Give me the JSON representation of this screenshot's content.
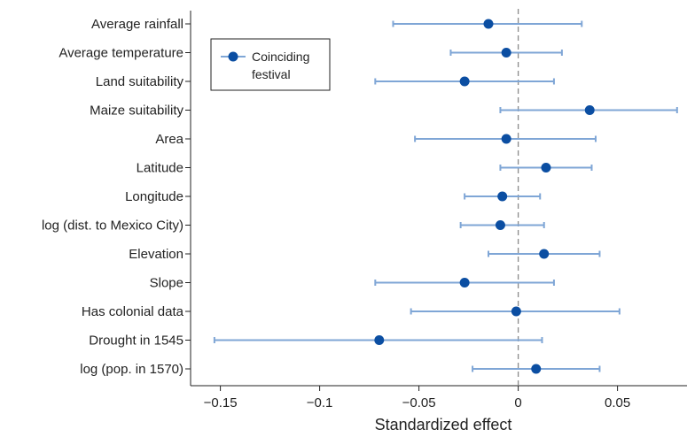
{
  "chart_data": {
    "type": "scatter",
    "subtype": "forest-plot",
    "xlabel": "Standardized effect",
    "xlim": [
      -0.165,
      0.085
    ],
    "xticks": [
      -0.15,
      -0.1,
      -0.05,
      0,
      0.05
    ],
    "xtick_labels": [
      "−0.15",
      "−0.1",
      "−0.05",
      "0",
      "0.05"
    ],
    "reference_line": 0,
    "grid": false,
    "legend": {
      "placement": "top-left",
      "entries": [
        "Coinciding",
        "festival"
      ]
    },
    "colors": {
      "point": "#0b4ea2",
      "ci": "#7fa6d6",
      "reference": "#8a8a8a"
    },
    "series": [
      {
        "name": "Coinciding festival",
        "points": [
          {
            "label": "Average rainfall",
            "estimate": -0.015,
            "ci_low": -0.063,
            "ci_high": 0.032
          },
          {
            "label": "Average temperature",
            "estimate": -0.006,
            "ci_low": -0.034,
            "ci_high": 0.022
          },
          {
            "label": "Land suitability",
            "estimate": -0.027,
            "ci_low": -0.072,
            "ci_high": 0.018
          },
          {
            "label": "Maize suitability",
            "estimate": 0.036,
            "ci_low": -0.009,
            "ci_high": 0.08
          },
          {
            "label": "Area",
            "estimate": -0.006,
            "ci_low": -0.052,
            "ci_high": 0.039
          },
          {
            "label": "Latitude",
            "estimate": 0.014,
            "ci_low": -0.009,
            "ci_high": 0.037
          },
          {
            "label": "Longitude",
            "estimate": -0.008,
            "ci_low": -0.027,
            "ci_high": 0.011
          },
          {
            "label": "log (dist. to Mexico City)",
            "estimate": -0.009,
            "ci_low": -0.029,
            "ci_high": 0.013
          },
          {
            "label": "Elevation",
            "estimate": 0.013,
            "ci_low": -0.015,
            "ci_high": 0.041
          },
          {
            "label": "Slope",
            "estimate": -0.027,
            "ci_low": -0.072,
            "ci_high": 0.018
          },
          {
            "label": "Has colonial data",
            "estimate": -0.001,
            "ci_low": -0.054,
            "ci_high": 0.051
          },
          {
            "label": "Drought in 1545",
            "estimate": -0.07,
            "ci_low": -0.153,
            "ci_high": 0.012
          },
          {
            "label": "log (pop. in 1570)",
            "estimate": 0.009,
            "ci_low": -0.023,
            "ci_high": 0.041
          }
        ]
      }
    ]
  }
}
